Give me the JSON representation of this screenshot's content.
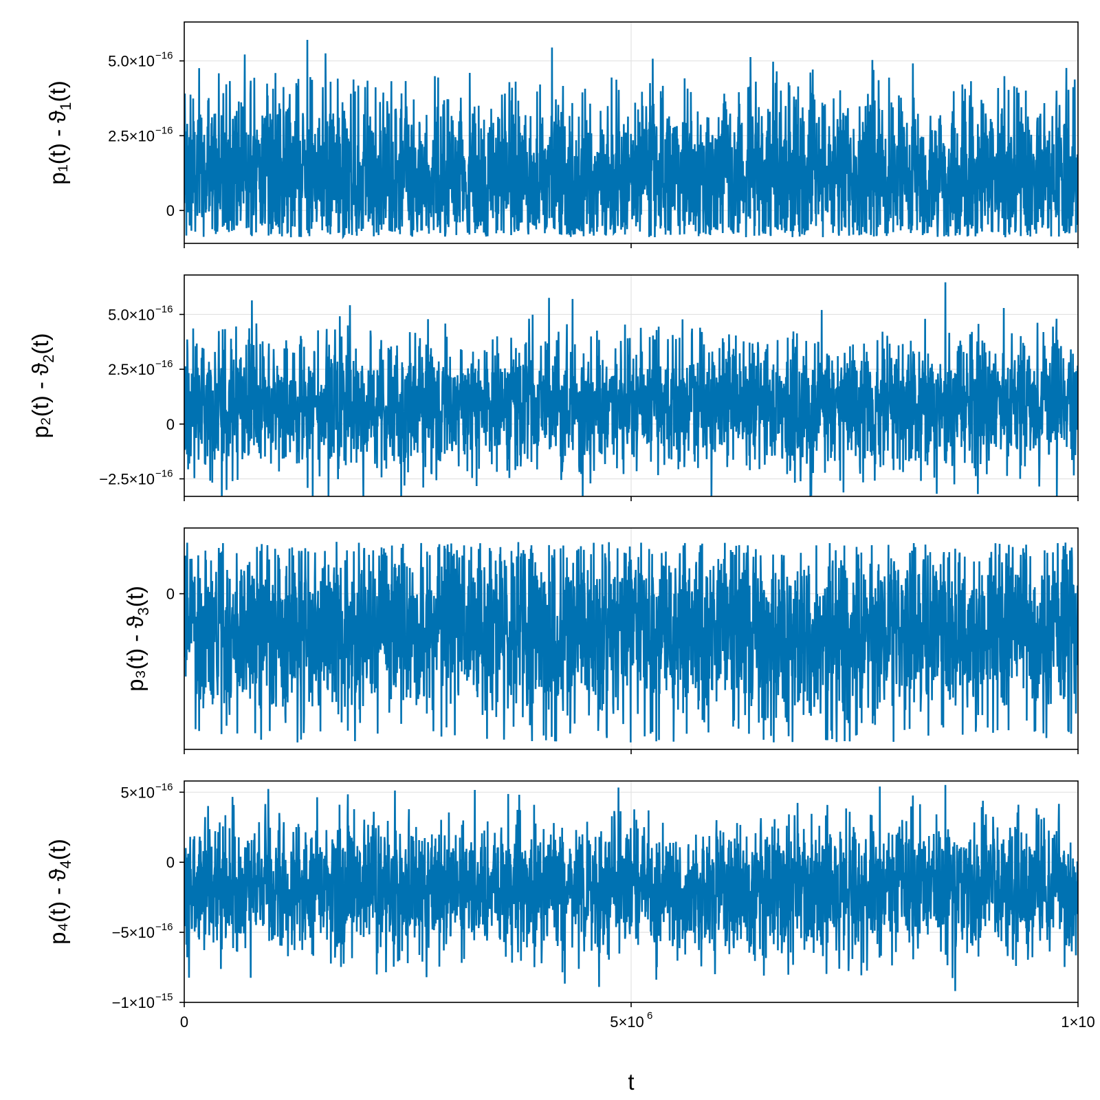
{
  "chart_data": {
    "type": "line",
    "x_axis": {
      "label": "t",
      "range": [
        0,
        10000000
      ],
      "ticks": [
        {
          "value": 0,
          "label": "0"
        },
        {
          "value": 5000000,
          "label": "5×10",
          "exp": "6"
        },
        {
          "value": 10000000,
          "label": "1×10",
          "exp": ""
        }
      ]
    },
    "line_color": "#0072b2",
    "grid": true,
    "panels": [
      {
        "ylabel": {
          "base": "p₁(t) - ϑ",
          "sub": "1",
          "tail": "(t)"
        },
        "ylim": [
          -1.1e-16,
          6.3e-16
        ],
        "yticks": [
          {
            "value": 0,
            "label": "0",
            "exp": ""
          },
          {
            "value": 2.5e-16,
            "label": "2.5×10",
            "exp": "−16"
          },
          {
            "value": 5e-16,
            "label": "5.0×10",
            "exp": "−16"
          }
        ],
        "series": {
          "n_samples": 3000,
          "center": 1.2e-16,
          "spread": 1.45e-16,
          "min": -9e-17,
          "max": 6e-16
        }
      },
      {
        "ylabel": {
          "base": "p₂(t) - ϑ",
          "sub": "2",
          "tail": "(t)"
        },
        "ylim": [
          -3.3e-16,
          6.8e-16
        ],
        "yticks": [
          {
            "value": -2.5e-16,
            "label": "−2.5×10",
            "exp": "−16"
          },
          {
            "value": 0,
            "label": "0",
            "exp": ""
          },
          {
            "value": 2.5e-16,
            "label": "2.5×10",
            "exp": "−16"
          },
          {
            "value": 5e-16,
            "label": "5.0×10",
            "exp": "−16"
          }
        ],
        "series": {
          "n_samples": 3000,
          "center": 9e-17,
          "spread": 1.5e-16,
          "min": -3.5e-16,
          "max": 6.6e-16
        }
      },
      {
        "ylabel": {
          "base": "p₃(t) - ϑ",
          "sub": "3",
          "tail": "(t)"
        },
        "ylim": [
          -4.5e-16,
          1.9e-16
        ],
        "yticks": [
          {
            "value": 0,
            "label": "0",
            "exp": ""
          }
        ],
        "series": {
          "n_samples": 3000,
          "center": -1.1e-16,
          "spread": 1.35e-16,
          "min": -4.3e-16,
          "max": 1.5e-16
        }
      },
      {
        "ylabel": {
          "base": "p₄(t) - ϑ",
          "sub": "4",
          "tail": "(t)"
        },
        "ylim": [
          -1e-15,
          5.8e-16
        ],
        "yticks": [
          {
            "value": -1e-15,
            "label": "−1×10",
            "exp": "−15"
          },
          {
            "value": -5e-16,
            "label": "−5×10",
            "exp": "−16"
          },
          {
            "value": 0,
            "label": "0",
            "exp": ""
          },
          {
            "value": 5e-16,
            "label": "5×10",
            "exp": "−16"
          }
        ],
        "series": {
          "n_samples": 3000,
          "center": -1.8e-16,
          "spread": 2.4e-16,
          "min": -9.3e-16,
          "max": 6e-16
        }
      }
    ]
  }
}
